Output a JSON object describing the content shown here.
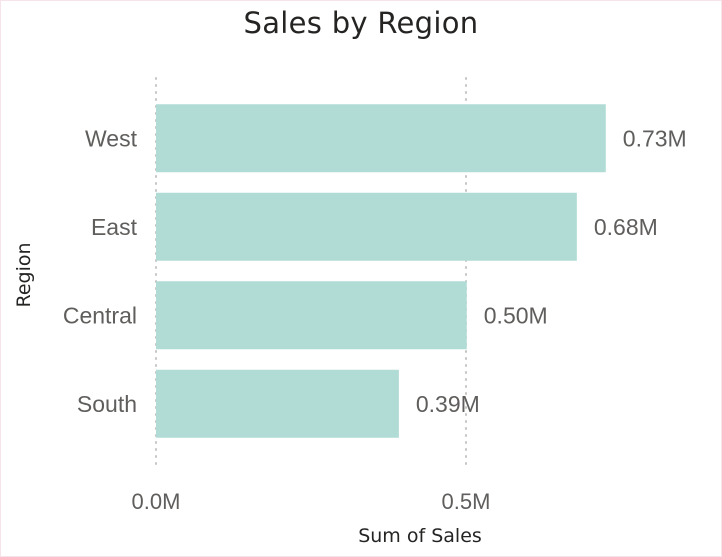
{
  "chart_data": {
    "type": "bar",
    "orientation": "horizontal",
    "title": "Sales by Region",
    "xlabel": "Sum of Sales",
    "ylabel": "Region",
    "categories": [
      "West",
      "East",
      "Central",
      "South"
    ],
    "values": [
      725457.82,
      678781.24,
      501239.89,
      391721.9
    ],
    "data_labels": [
      "0.73M",
      "0.68M",
      "0.50M",
      "0.39M"
    ],
    "x_ticks": [
      0,
      500000
    ],
    "x_tick_labels": [
      "0.0M",
      "0.5M"
    ],
    "xlim": [
      0,
      800000
    ],
    "grid": "vertical dotted",
    "bar_color": "#b1dcd6",
    "label_color_inside": "#ffffff",
    "label_color_outside": "#605e5c"
  }
}
